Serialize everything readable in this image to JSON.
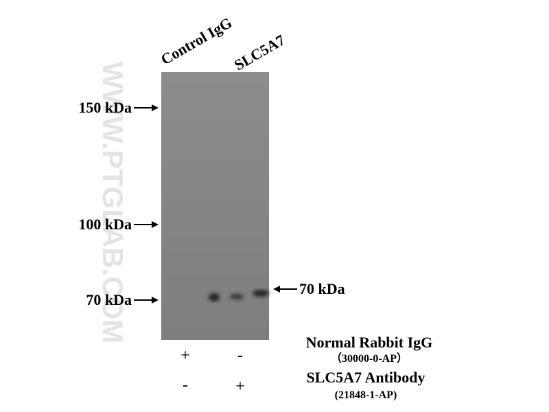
{
  "lanes": [
    "Control IgG",
    "SLC5A7"
  ],
  "markers": [
    "150 kDa",
    "100 kDa",
    "70 kDa"
  ],
  "band_label": "70 kDa",
  "treatments": [
    {
      "name": "Normal Rabbit IgG",
      "catalog": "（30000-0-AP）",
      "signs": [
        "+",
        "-"
      ]
    },
    {
      "name": "SLC5A7 Antibody",
      "catalog": "(21848-1-AP)",
      "signs": [
        "-",
        "+"
      ]
    }
  ],
  "watermark": "WWW.PTGLAB.COM"
}
